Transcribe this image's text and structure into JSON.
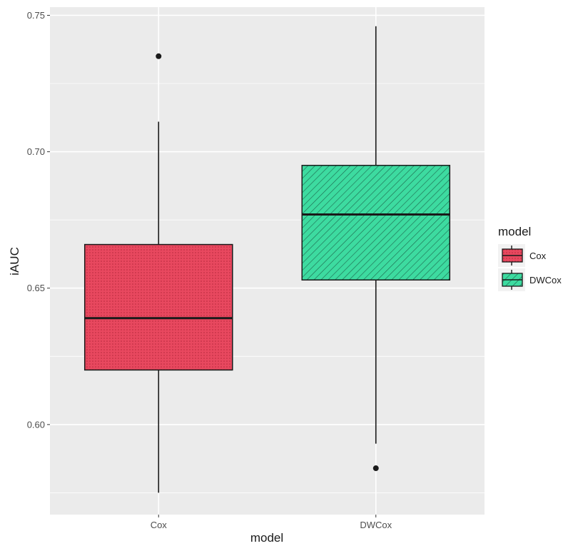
{
  "chart_data": {
    "type": "boxplot",
    "title": "",
    "xlabel": "model",
    "ylabel": "iAUC",
    "ylim": [
      0.567,
      0.753
    ],
    "yticks": [
      0.6,
      0.65,
      0.7,
      0.75
    ],
    "ytick_labels": [
      "0.60",
      "0.65",
      "0.70",
      "0.75"
    ],
    "categories": [
      "Cox",
      "DWCox"
    ],
    "boxes": [
      {
        "name": "Cox",
        "whisker_low": 0.575,
        "q1": 0.62,
        "median": 0.639,
        "q3": 0.666,
        "whisker_high": 0.711,
        "outliers": [
          0.735
        ],
        "color": "#e8485f",
        "pattern": "dots"
      },
      {
        "name": "DWCox",
        "whisker_low": 0.593,
        "q1": 0.653,
        "median": 0.677,
        "q3": 0.695,
        "whisker_high": 0.746,
        "outliers": [
          0.584
        ],
        "color": "#3ddba0",
        "pattern": "diagonal-stripes"
      }
    ],
    "grid": true,
    "legend": {
      "title": "model",
      "position": "right",
      "entries": [
        "Cox",
        "DWCox"
      ]
    },
    "panel_background": "#ebebeb",
    "grid_color": "#ffffff"
  }
}
